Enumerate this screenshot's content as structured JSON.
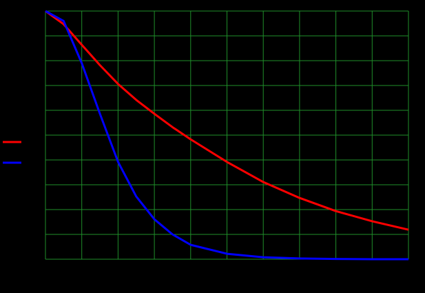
{
  "chart_data": {
    "type": "line",
    "x": [
      0,
      0.5,
      1,
      1.5,
      2,
      2.5,
      3,
      3.5,
      4,
      5,
      6,
      7,
      8,
      9,
      10
    ],
    "series": [
      {
        "color": "#ff0000",
        "values": [
          1.0,
          0.947,
          0.864,
          0.782,
          0.706,
          0.642,
          0.586,
          0.532,
          0.483,
          0.392,
          0.311,
          0.247,
          0.194,
          0.153,
          0.119
        ]
      },
      {
        "color": "#0000ff",
        "values": [
          1.0,
          0.96,
          0.79,
          0.586,
          0.392,
          0.253,
          0.161,
          0.1,
          0.058,
          0.022,
          0.008,
          0.003,
          0.001,
          0,
          0
        ]
      }
    ],
    "xlim": [
      0,
      10
    ],
    "xticks": [
      0,
      1,
      2,
      3,
      4,
      5,
      6,
      7,
      8,
      9,
      10
    ],
    "ylim": [
      0,
      1
    ],
    "yticks": [
      0,
      0.1,
      0.2,
      0.3,
      0.4,
      0.5,
      0.6,
      0.7,
      0.8,
      0.9,
      1
    ],
    "grid": true,
    "grid_color": "#1f8f2a"
  }
}
